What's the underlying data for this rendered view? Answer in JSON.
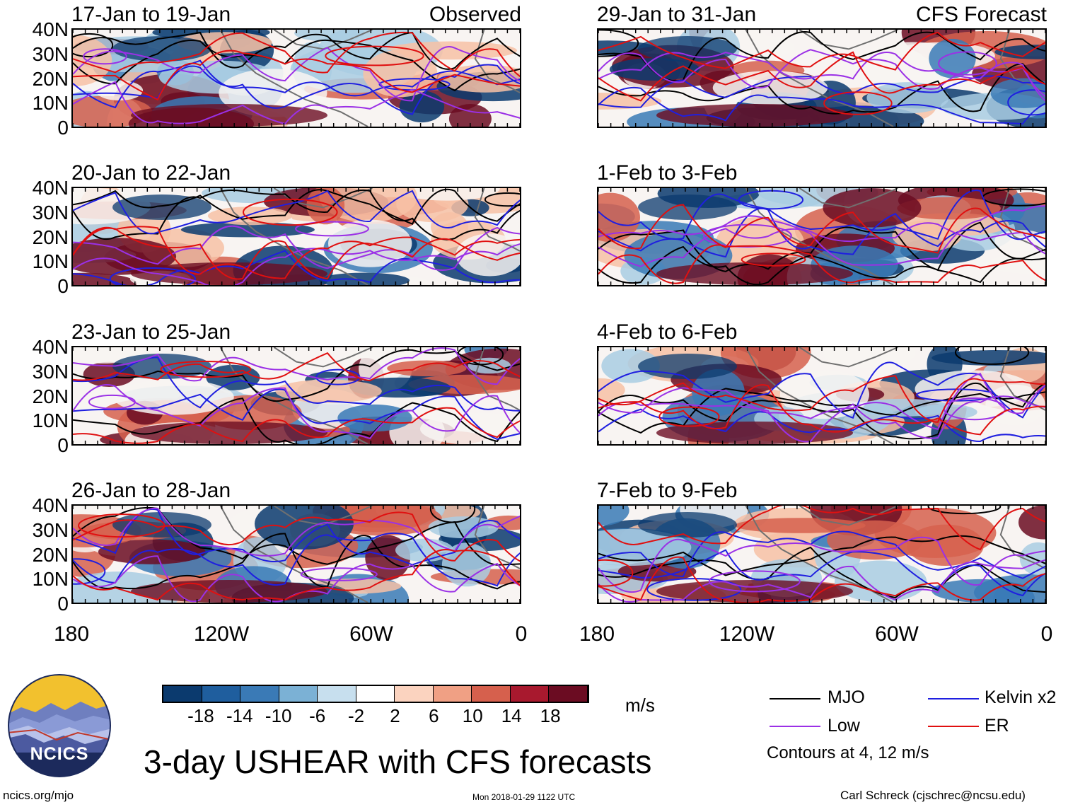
{
  "headers": {
    "left": "Observed",
    "right": "CFS Forecast"
  },
  "colors": {
    "negative_strong": "#0b3a6e",
    "negative_mid": "#3a7ab6",
    "negative_light": "#a9cde3",
    "neutral": "#f8f4f2",
    "positive_light": "#f7c1a6",
    "positive_mid": "#d6604d",
    "positive_strong": "#6b0c22",
    "land_outline": "#707070",
    "mjo": "#000000",
    "kelvin": "#1f1fe0",
    "low": "#9b30e6",
    "er": "#e01010"
  },
  "panels": [
    {
      "title": "17-Jan to 19-Jan",
      "tag": "Observed"
    },
    {
      "title": "29-Jan to 31-Jan",
      "tag": "CFS Forecast"
    },
    {
      "title": "20-Jan to 22-Jan",
      "tag": ""
    },
    {
      "title": "1-Feb to 3-Feb",
      "tag": ""
    },
    {
      "title": "23-Jan to 25-Jan",
      "tag": ""
    },
    {
      "title": "4-Feb to 6-Feb",
      "tag": ""
    },
    {
      "title": "26-Jan to 28-Jan",
      "tag": ""
    },
    {
      "title": "7-Feb to 9-Feb",
      "tag": ""
    }
  ],
  "lat_labels": [
    "40N",
    "30N",
    "20N",
    "10N",
    "0"
  ],
  "lon_labels": [
    "180",
    "120W",
    "60W",
    "0"
  ],
  "colorbar": {
    "ticks": [
      "-18",
      "-14",
      "-10",
      "-6",
      "-2",
      "2",
      "6",
      "10",
      "14",
      "18"
    ],
    "colors": [
      "#0b3a6e",
      "#1f5e9e",
      "#3a7ab6",
      "#7bb1d5",
      "#c7dfee",
      "#ffffff",
      "#fbd3bf",
      "#f0a084",
      "#d6604d",
      "#a8192e",
      "#6b0c22"
    ],
    "units": "m/s"
  },
  "legend": {
    "items": [
      {
        "label": "MJO",
        "color": "#000000"
      },
      {
        "label": "Kelvin x2",
        "color": "#1f1fe0"
      },
      {
        "label": "Low",
        "color": "#9b30e6"
      },
      {
        "label": "ER",
        "color": "#e01010"
      }
    ],
    "note": "Contours at 4, 12 m/s"
  },
  "title": "3-day USHEAR with CFS forecasts",
  "logo_text": "NCICS",
  "footer": {
    "left": "ncics.org/mjo",
    "center": "Mon 2018-01-29 1122 UTC",
    "right": "Carl Schreck (cjschrec@ncsu.edu)"
  }
}
